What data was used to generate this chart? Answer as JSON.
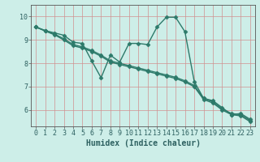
{
  "xlabel": "Humidex (Indice chaleur)",
  "bg_color": "#cdeee8",
  "grid_color": "#d09090",
  "line_color": "#2d7a6a",
  "xlim": [
    -0.5,
    23.5
  ],
  "ylim": [
    5.3,
    10.5
  ],
  "yticks": [
    6,
    7,
    8,
    9,
    10
  ],
  "xticks": [
    0,
    1,
    2,
    3,
    4,
    5,
    6,
    7,
    8,
    9,
    10,
    11,
    12,
    13,
    14,
    15,
    16,
    17,
    18,
    19,
    20,
    21,
    22,
    23
  ],
  "line1_x": [
    0,
    1,
    2,
    3,
    4,
    5,
    6,
    7,
    8,
    9,
    10,
    11,
    12,
    13,
    14,
    15,
    16,
    17,
    18,
    19,
    20,
    21,
    22,
    23
  ],
  "line1_y": [
    9.55,
    9.4,
    9.3,
    9.2,
    8.9,
    8.85,
    8.1,
    7.38,
    8.35,
    8.05,
    8.85,
    8.85,
    8.8,
    9.55,
    9.97,
    9.97,
    9.35,
    7.22,
    6.5,
    6.4,
    6.1,
    5.8,
    5.85,
    5.6
  ],
  "line2_x": [
    0,
    1,
    2,
    3,
    4,
    5,
    6,
    7,
    8,
    9,
    10,
    11,
    12,
    13,
    14,
    15,
    16,
    17,
    18,
    19,
    20,
    21,
    22,
    23
  ],
  "line2_y": [
    9.55,
    9.4,
    9.25,
    9.05,
    8.8,
    8.7,
    8.55,
    8.35,
    8.1,
    8.0,
    7.9,
    7.8,
    7.7,
    7.6,
    7.5,
    7.4,
    7.25,
    7.05,
    6.5,
    6.35,
    6.05,
    5.85,
    5.8,
    5.55
  ],
  "line3_x": [
    0,
    1,
    2,
    3,
    4,
    5,
    6,
    7,
    8,
    9,
    10,
    11,
    12,
    13,
    14,
    15,
    16,
    17,
    18,
    19,
    20,
    21,
    22,
    23
  ],
  "line3_y": [
    9.55,
    9.38,
    9.22,
    9.0,
    8.75,
    8.65,
    8.5,
    8.3,
    8.05,
    7.95,
    7.85,
    7.75,
    7.65,
    7.55,
    7.45,
    7.35,
    7.2,
    7.0,
    6.45,
    6.3,
    6.0,
    5.8,
    5.75,
    5.5
  ],
  "marker": "D",
  "markersize": 2.5,
  "linewidth": 1.0,
  "tick_fontsize": 6,
  "xlabel_fontsize": 7
}
